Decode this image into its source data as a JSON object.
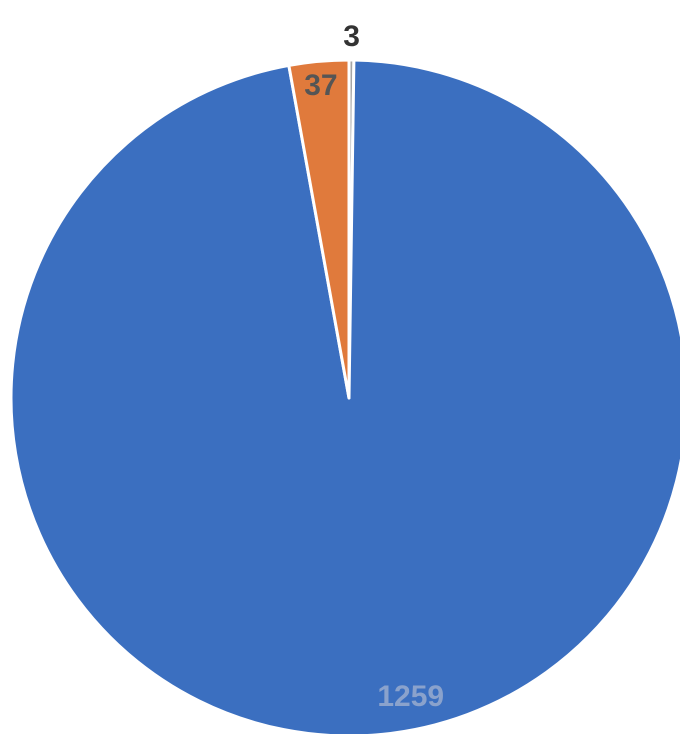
{
  "chart_data": {
    "type": "pie",
    "title": "",
    "values": [
      3,
      1259,
      37
    ],
    "colors": [
      "#a5a5a5",
      "#3b6fc0",
      "#e07a3c"
    ],
    "data_labels": [
      "3",
      "1259",
      "37"
    ],
    "label_colors": [
      "#333333",
      "#8aa2cc",
      "#555555"
    ],
    "legend": "none",
    "start_angle_deg": 0,
    "direction": "clockwise"
  }
}
